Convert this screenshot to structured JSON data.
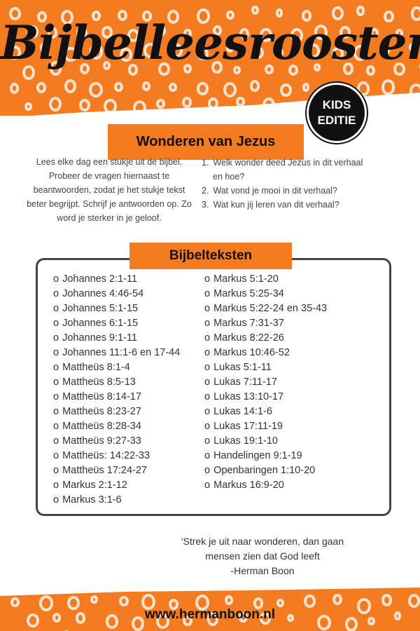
{
  "colors": {
    "accent": "#f47b20",
    "dots": "#fde3cf",
    "text": "#111111"
  },
  "header": {
    "title": "Bijbelleesrooster",
    "badge_line1": "KIDS",
    "badge_line2": "EDITIE"
  },
  "subtitle": "Wonderen van Jezus",
  "intro": "Lees elke dag een stukje uit de bijbel. Probeer de vragen hiernaast te beantwoorden, zodat je het stukje tekst beter begrijpt. Schrijf je antwoorden op. Zo word je sterker in je geloof.",
  "questions": [
    {
      "n": "1.",
      "line1": "Welk wonder deed Jezus in dit verhaal",
      "line2": "en hoe?"
    },
    {
      "n": "2.",
      "line1": "Wat vond je mooi in dit verhaal?"
    },
    {
      "n": "3.",
      "line1": "Wat kun jij leren van dit verhaal?"
    }
  ],
  "bible_texts": {
    "title": "Bijbelteksten",
    "bullet": "o",
    "column1": [
      "Johannes 2:1-11",
      "Johannes 4:46-54",
      "Johannes 5:1-15",
      "Johannes 6:1-15",
      "Johannes 9:1-11",
      "Johannes 11:1-6 en 17-44",
      "Mattheüs 8:1-4",
      "Mattheüs 8:5-13",
      "Mattheüs 8:14-17",
      "Mattheüs 8:23-27",
      "Mattheüs 8:28-34",
      "Mattheüs 9:27-33",
      "Mattheüs: 14:22-33",
      "Mattheüs 17:24-27",
      "Markus 2:1-12",
      "Markus 3:1-6"
    ],
    "column2": [
      "Markus 5:1-20",
      "Markus 5:25-34",
      "Markus 5:22-24 en 35-43",
      "Markus 7:31-37",
      "Markus 8:22-26",
      "Markus 10:46-52",
      "Lukas 5:1-11",
      "Lukas 7:11-17",
      "Lukas 13:10-17",
      "Lukas 14:1-6",
      "Lukas 17:11-19",
      "Lukas 19:1-10",
      "Handelingen 9:1-19",
      "Openbaringen 1:10-20",
      "Markus 16:9-20"
    ]
  },
  "quote": {
    "line1": "'Strek je uit naar wonderen, dan gaan",
    "line2": "mensen zien dat God leeft",
    "author": "-Herman Boon"
  },
  "footer": "www.hermanboon.nl"
}
